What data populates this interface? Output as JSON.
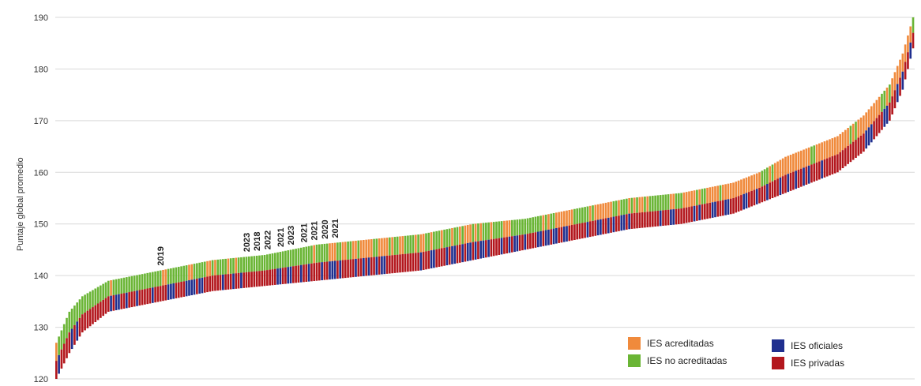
{
  "chart_data": {
    "type": "bar",
    "title": "",
    "xlabel": "",
    "ylabel": "Puntaje global promedio",
    "ylim": [
      120,
      190
    ],
    "yticks": [
      120,
      130,
      140,
      150,
      160,
      170,
      180,
      190
    ],
    "grid": true,
    "legend_placement": "bottom-right",
    "n_bars": 330,
    "rank_curve": {
      "description_points_bar_index": [
        0,
        5,
        10,
        20,
        40,
        60,
        80,
        100,
        120,
        140,
        160,
        180,
        200,
        220,
        240,
        260,
        270,
        280,
        290,
        300,
        310,
        320,
        325,
        329
      ],
      "upper_score": [
        127,
        133,
        136,
        139,
        141,
        143,
        144,
        146,
        147,
        148,
        150,
        151,
        153,
        155,
        156,
        158,
        160,
        163,
        165,
        167,
        171,
        177,
        183,
        190
      ],
      "lower_score": [
        120,
        125,
        129,
        133,
        135,
        137,
        138,
        139,
        140,
        141,
        143,
        145,
        147,
        149,
        150,
        152,
        154,
        156,
        158,
        160,
        164,
        170,
        176,
        184
      ]
    },
    "series": [
      {
        "name": "IES acreditadas",
        "color": "#f08a3c"
      },
      {
        "name": "IES no acreditadas",
        "color": "#6ab535"
      },
      {
        "name": "IES oficiales",
        "color": "#1f2f8f"
      },
      {
        "name": "IES privadas",
        "color": "#b3171d"
      }
    ],
    "annotations": [
      {
        "text": "2019",
        "bar_index": 40
      },
      {
        "text": "2023",
        "bar_index": 73
      },
      {
        "text": "2018",
        "bar_index": 77
      },
      {
        "text": "2022",
        "bar_index": 81
      },
      {
        "text": "2021",
        "bar_index": 86
      },
      {
        "text": "2023",
        "bar_index": 90
      },
      {
        "text": "2021",
        "bar_index": 95
      },
      {
        "text": "2021",
        "bar_index": 99
      },
      {
        "text": "2020",
        "bar_index": 103
      },
      {
        "text": "2021",
        "bar_index": 107
      }
    ]
  },
  "legend": {
    "acreditadas": "IES acreditadas",
    "no_acreditadas": "IES no acreditadas",
    "oficiales": "IES oficiales",
    "privadas": "IES privadas"
  },
  "colors": {
    "acreditadas": "#f08a3c",
    "no_acreditadas": "#6ab535",
    "oficiales": "#1f2f8f",
    "privadas": "#b3171d",
    "grid": "#d9d9d9"
  }
}
